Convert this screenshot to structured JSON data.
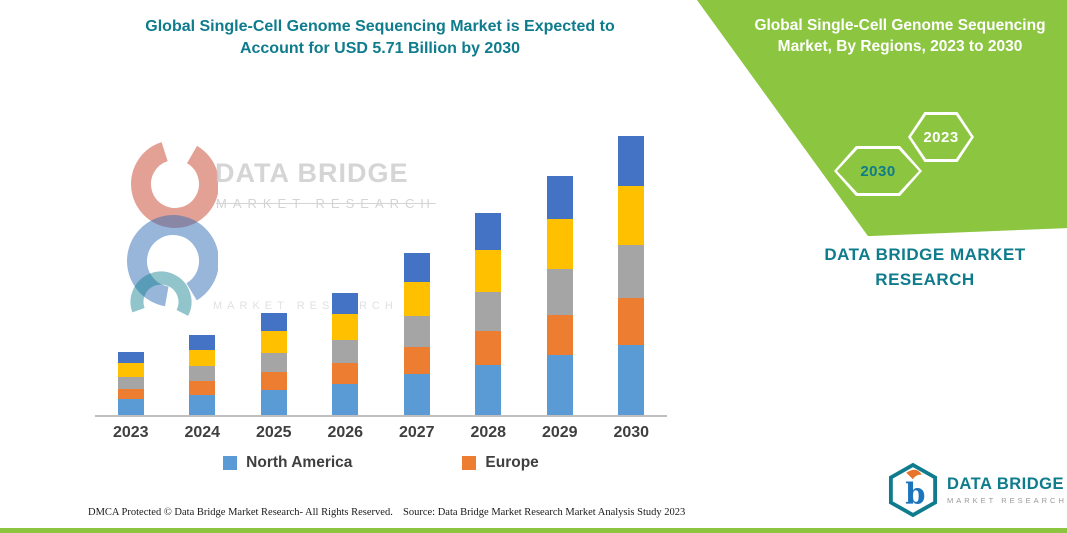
{
  "colors": {
    "green": "#8CC540",
    "teal": "#0E7C8C",
    "axis": "#BFBFBF"
  },
  "left_panel": {
    "title_line1": "Global Single-Cell Genome Sequencing Market is Expected to",
    "title_line2": "Account for USD 5.71 Billion by 2030"
  },
  "right_panel": {
    "title_line1": "Global Single-Cell Genome Sequencing",
    "title_line2": "Market, By Regions, 2023 to 2030",
    "hex_top_year": "2023",
    "hex_bottom_year": "2030",
    "brand_line1": "DATA BRIDGE MARKET",
    "brand_line2": "RESEARCH"
  },
  "watermark": {
    "title": "DATA BRIDGE",
    "subtitle": "MARKET RESEARCH",
    "faint": "MARKET RESEARCH"
  },
  "logo": {
    "name": "DATA BRIDGE",
    "tagline": "MARKET RESEARCH"
  },
  "footer": {
    "dmca": "DMCA Protected © Data Bridge Market Research-  All Rights Reserved.",
    "source": "Source: Data Bridge Market Research  Market Analysis Study 2023"
  },
  "chart_data": {
    "type": "bar",
    "stacked": true,
    "title": "Global Single-Cell Genome Sequencing Market is Expected to Account for USD 5.71 Billion by 2030",
    "unit": "USD Billion",
    "categories": [
      "2023",
      "2024",
      "2025",
      "2026",
      "2027",
      "2028",
      "2029",
      "2030"
    ],
    "series": [
      {
        "name": "North America",
        "color": "#5B9BD5",
        "in_legend": true,
        "values": [
          0.32,
          0.41,
          0.52,
          0.63,
          0.83,
          1.03,
          1.22,
          1.43
        ]
      },
      {
        "name": "Europe",
        "color": "#ED7D31",
        "in_legend": true,
        "values": [
          0.22,
          0.28,
          0.36,
          0.43,
          0.56,
          0.7,
          0.83,
          0.97
        ]
      },
      {
        "name": "unlabeled-gray",
        "color": "#A5A5A5",
        "in_legend": false,
        "values": [
          0.25,
          0.31,
          0.4,
          0.48,
          0.63,
          0.78,
          0.93,
          1.08
        ]
      },
      {
        "name": "unlabeled-yellow",
        "color": "#FFC000",
        "in_legend": false,
        "values": [
          0.27,
          0.34,
          0.44,
          0.52,
          0.7,
          0.87,
          1.03,
          1.2
        ]
      },
      {
        "name": "unlabeled-dark-blue",
        "color": "#4472C4",
        "in_legend": false,
        "values": [
          0.23,
          0.3,
          0.37,
          0.44,
          0.6,
          0.75,
          0.88,
          1.03
        ]
      }
    ],
    "totals": [
      1.29,
      1.64,
      2.09,
      2.5,
      3.32,
      4.13,
      4.89,
      5.71
    ],
    "ylim": [
      0,
      5.71
    ],
    "gridlines": false,
    "y_axis_visible": false,
    "legend_position": "bottom"
  }
}
